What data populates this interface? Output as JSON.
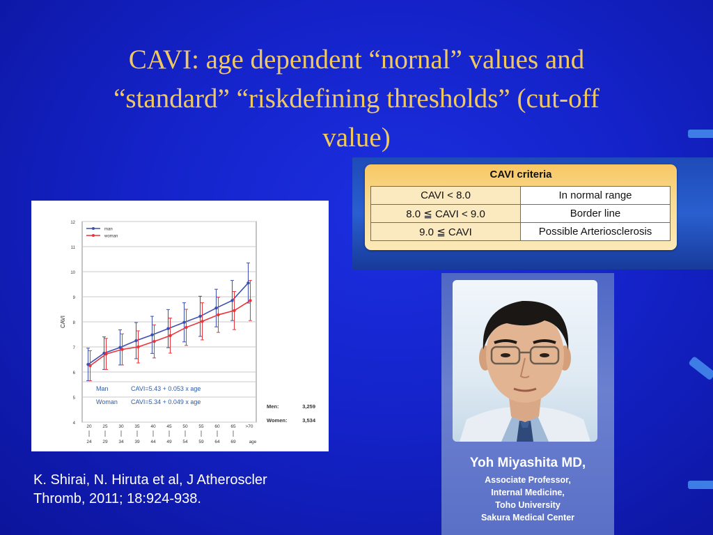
{
  "slide": {
    "title_line1": "CAVI: age dependent “nornal” values and",
    "title_line2": "“standard” “riskdefining thresholds” (cut-off",
    "title_line3": "value)"
  },
  "chart_data": {
    "type": "line",
    "ylabel": "CAVI",
    "xlabel": "age",
    "ylim": [
      4,
      12
    ],
    "yticks": [
      "4",
      "5",
      "6",
      "7",
      "8",
      "9",
      "10",
      "11",
      "12"
    ],
    "categories": [
      {
        "top": "20",
        "bottom": "24"
      },
      {
        "top": "25",
        "bottom": "29"
      },
      {
        "top": "30",
        "bottom": "34"
      },
      {
        "top": "35",
        "bottom": "39"
      },
      {
        "top": "40",
        "bottom": "44"
      },
      {
        "top": "45",
        "bottom": "49"
      },
      {
        "top": "50",
        "bottom": "54"
      },
      {
        "top": "55",
        "bottom": "59"
      },
      {
        "top": "60",
        "bottom": "64"
      },
      {
        "top": "65",
        "bottom": "69"
      },
      {
        "top": ">70",
        "bottom": ""
      }
    ],
    "legend": [
      "man",
      "woman"
    ],
    "legend_position": "top-left",
    "grid": true,
    "series": [
      {
        "name": "man",
        "color": "#3c4fb0",
        "values": [
          6.3,
          6.75,
          6.98,
          7.25,
          7.48,
          7.73,
          7.98,
          8.22,
          8.55,
          8.85,
          9.55
        ],
        "err": [
          0.65,
          0.65,
          0.7,
          0.72,
          0.74,
          0.76,
          0.78,
          0.8,
          0.75,
          0.8,
          0.8
        ]
      },
      {
        "name": "woman",
        "color": "#e8333a",
        "values": [
          6.25,
          6.72,
          6.9,
          7.0,
          7.22,
          7.45,
          7.78,
          8.02,
          8.28,
          8.45,
          8.85
        ],
        "err": [
          0.6,
          0.62,
          0.62,
          0.64,
          0.66,
          0.7,
          0.72,
          0.74,
          0.7,
          0.76,
          0.8
        ]
      }
    ],
    "annotations": {
      "man_label": "Man",
      "man_formula": "CAVI=5.43 + 0.053 x age",
      "woman_label": "Woman",
      "woman_formula": "CAVI=5.34 + 0.049 x age",
      "men_n_label": "Men:",
      "men_n": "3,259",
      "women_n_label": "Women:",
      "women_n": "3,534"
    }
  },
  "citation": {
    "line1": "K. Shirai,  N. Hiruta et al, J Atheroscler",
    "line2": "Thromb, 2011; 18:924-938."
  },
  "criteria": {
    "title": "CAVI  criteria",
    "rows": [
      {
        "condition": "CAVI < 8.0",
        "label": "In normal range"
      },
      {
        "condition": "8.0 ≦ CAVI < 9.0",
        "label": "Border line"
      },
      {
        "condition": "9.0 ≦ CAVI",
        "label": "Possible Arteriosclerosis"
      }
    ]
  },
  "person": {
    "name": "Yoh Miyashita MD,",
    "role1": "Associate Professor,",
    "role2": "Internal Medicine,",
    "role3": "Toho University",
    "role4": "Sakura Medical Center"
  }
}
